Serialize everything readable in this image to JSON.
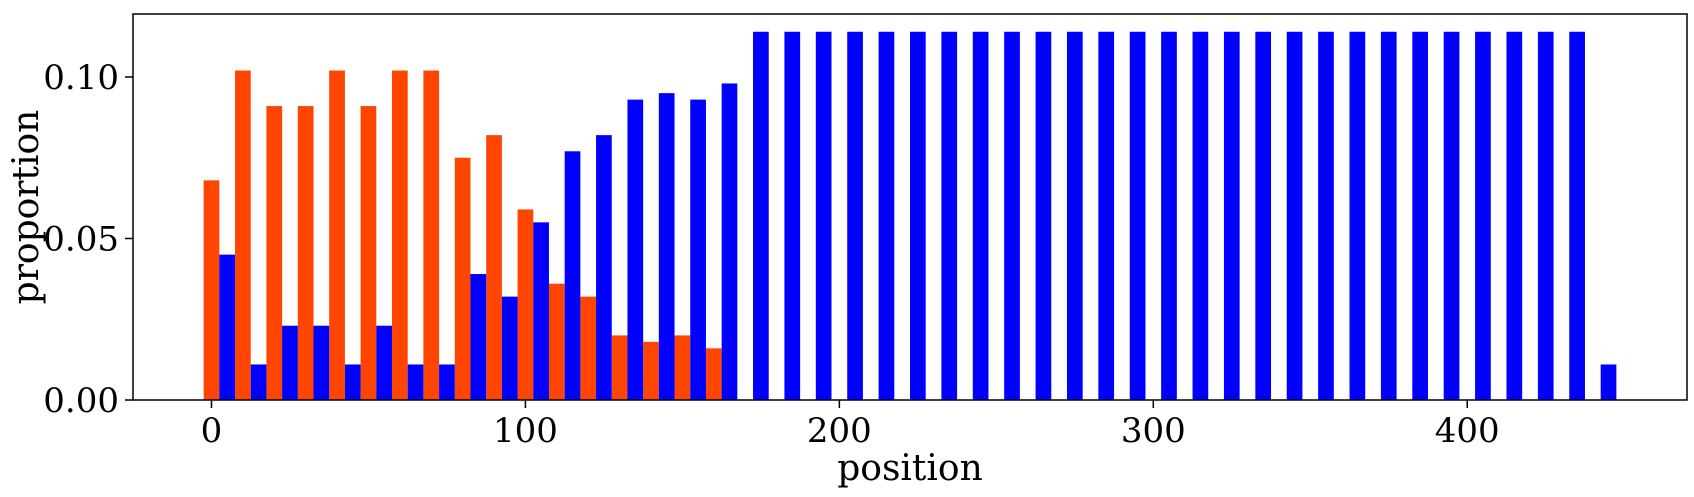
{
  "chart_data": {
    "type": "bar",
    "xlabel": "position",
    "ylabel": "proportion",
    "xlim": [
      -25,
      470
    ],
    "ylim": [
      0,
      0.1195
    ],
    "xticks": [
      0,
      100,
      200,
      300,
      400
    ],
    "xtick_labels": [
      "0",
      "100",
      "200",
      "300",
      "400"
    ],
    "yticks": [
      0.0,
      0.05,
      0.1
    ],
    "ytick_labels": [
      "0.00",
      "0.05",
      "0.10"
    ],
    "grid": false,
    "bar_width": 5,
    "series": [
      {
        "color": "#ff4500",
        "x": [
          0,
          10,
          20,
          30,
          40,
          50,
          60,
          70,
          80,
          90,
          100,
          110,
          120,
          130,
          140,
          150,
          160
        ],
        "values": [
          0.068,
          0.102,
          0.091,
          0.091,
          0.102,
          0.091,
          0.102,
          0.102,
          0.075,
          0.082,
          0.059,
          0.036,
          0.032,
          0.02,
          0.018,
          0.02,
          0.016
        ]
      },
      {
        "color": "#0000ff",
        "x": [
          5,
          15,
          25,
          35,
          45,
          55,
          65,
          75,
          85,
          95,
          105,
          115,
          125,
          135,
          145,
          155,
          165,
          175,
          185,
          195,
          205,
          215,
          225,
          235,
          245,
          255,
          265,
          275,
          285,
          295,
          305,
          315,
          325,
          335,
          345,
          355,
          365,
          375,
          385,
          395,
          405,
          415,
          425,
          435,
          445
        ],
        "values": [
          0.045,
          0.011,
          0.023,
          0.023,
          0.011,
          0.023,
          0.011,
          0.011,
          0.039,
          0.032,
          0.055,
          0.077,
          0.082,
          0.093,
          0.095,
          0.093,
          0.098,
          0.114,
          0.114,
          0.114,
          0.114,
          0.114,
          0.114,
          0.114,
          0.114,
          0.114,
          0.114,
          0.114,
          0.114,
          0.114,
          0.114,
          0.114,
          0.114,
          0.114,
          0.114,
          0.114,
          0.114,
          0.114,
          0.114,
          0.114,
          0.114,
          0.114,
          0.114,
          0.114,
          0.011
        ]
      }
    ]
  }
}
